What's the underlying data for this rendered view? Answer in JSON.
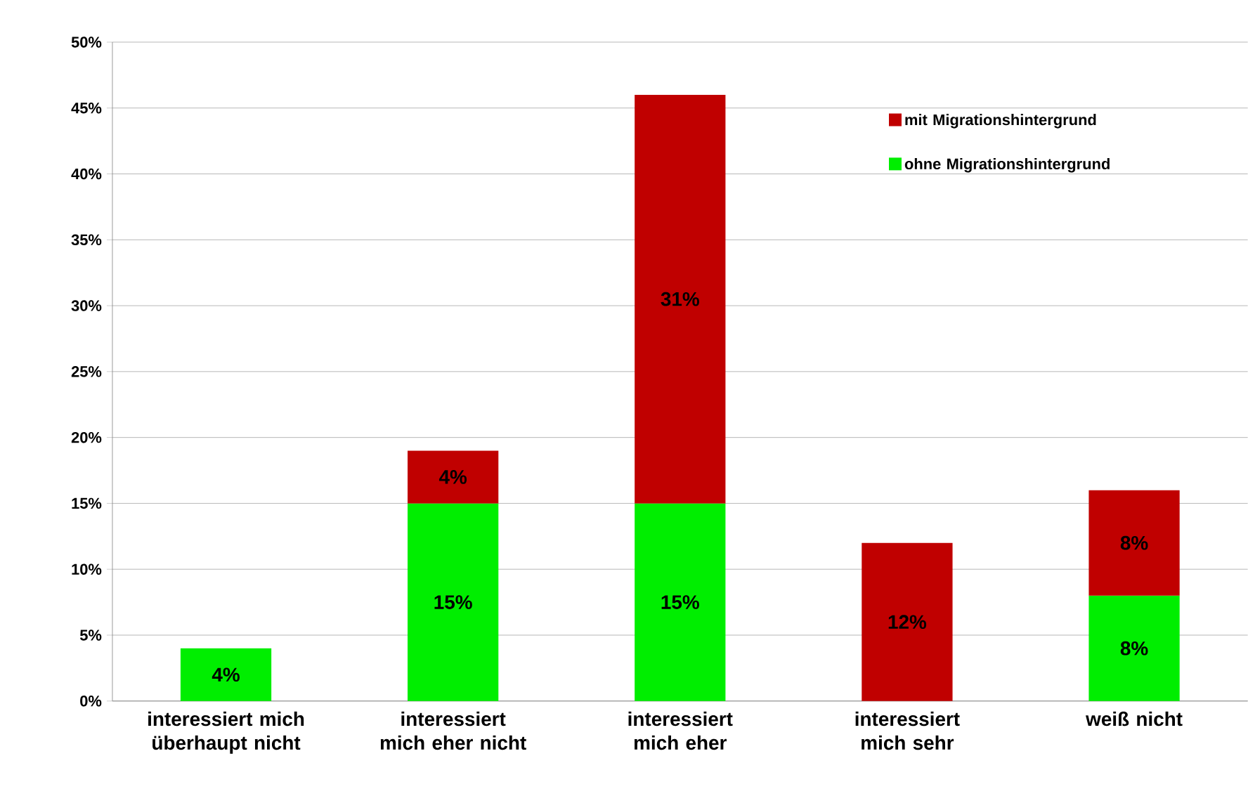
{
  "chart_data": {
    "type": "bar",
    "stacked": true,
    "categories": [
      "interessiert mich überhaupt nicht",
      "interessiert mich eher nicht",
      "interessiert mich eher",
      "interessiert mich sehr",
      "weiß nicht"
    ],
    "series": [
      {
        "name": "ohne Migrationshintergrund",
        "color": "#00ee00",
        "values": [
          4,
          15,
          15,
          null,
          8
        ],
        "value_labels": [
          "4%",
          "15%",
          "15%",
          null,
          "8%"
        ]
      },
      {
        "name": "mit Migrationshintergrund",
        "color": "#c00000",
        "values": [
          null,
          4,
          31,
          12,
          8
        ],
        "value_labels": [
          null,
          "4%",
          "31%",
          "12%",
          "8%"
        ]
      }
    ],
    "ylim": [
      0,
      50
    ],
    "yticks": [
      {
        "value": 0,
        "label": "0%"
      },
      {
        "value": 5,
        "label": "5%"
      },
      {
        "value": 10,
        "label": "10%"
      },
      {
        "value": 15,
        "label": "15%"
      },
      {
        "value": 20,
        "label": "20%"
      },
      {
        "value": 25,
        "label": "25%"
      },
      {
        "value": 30,
        "label": "30%"
      },
      {
        "value": 35,
        "label": "35%"
      },
      {
        "value": 40,
        "label": "40%"
      },
      {
        "value": 45,
        "label": "45%"
      },
      {
        "value": 50,
        "label": "50%"
      }
    ],
    "grid": "y",
    "legend": "top right"
  }
}
